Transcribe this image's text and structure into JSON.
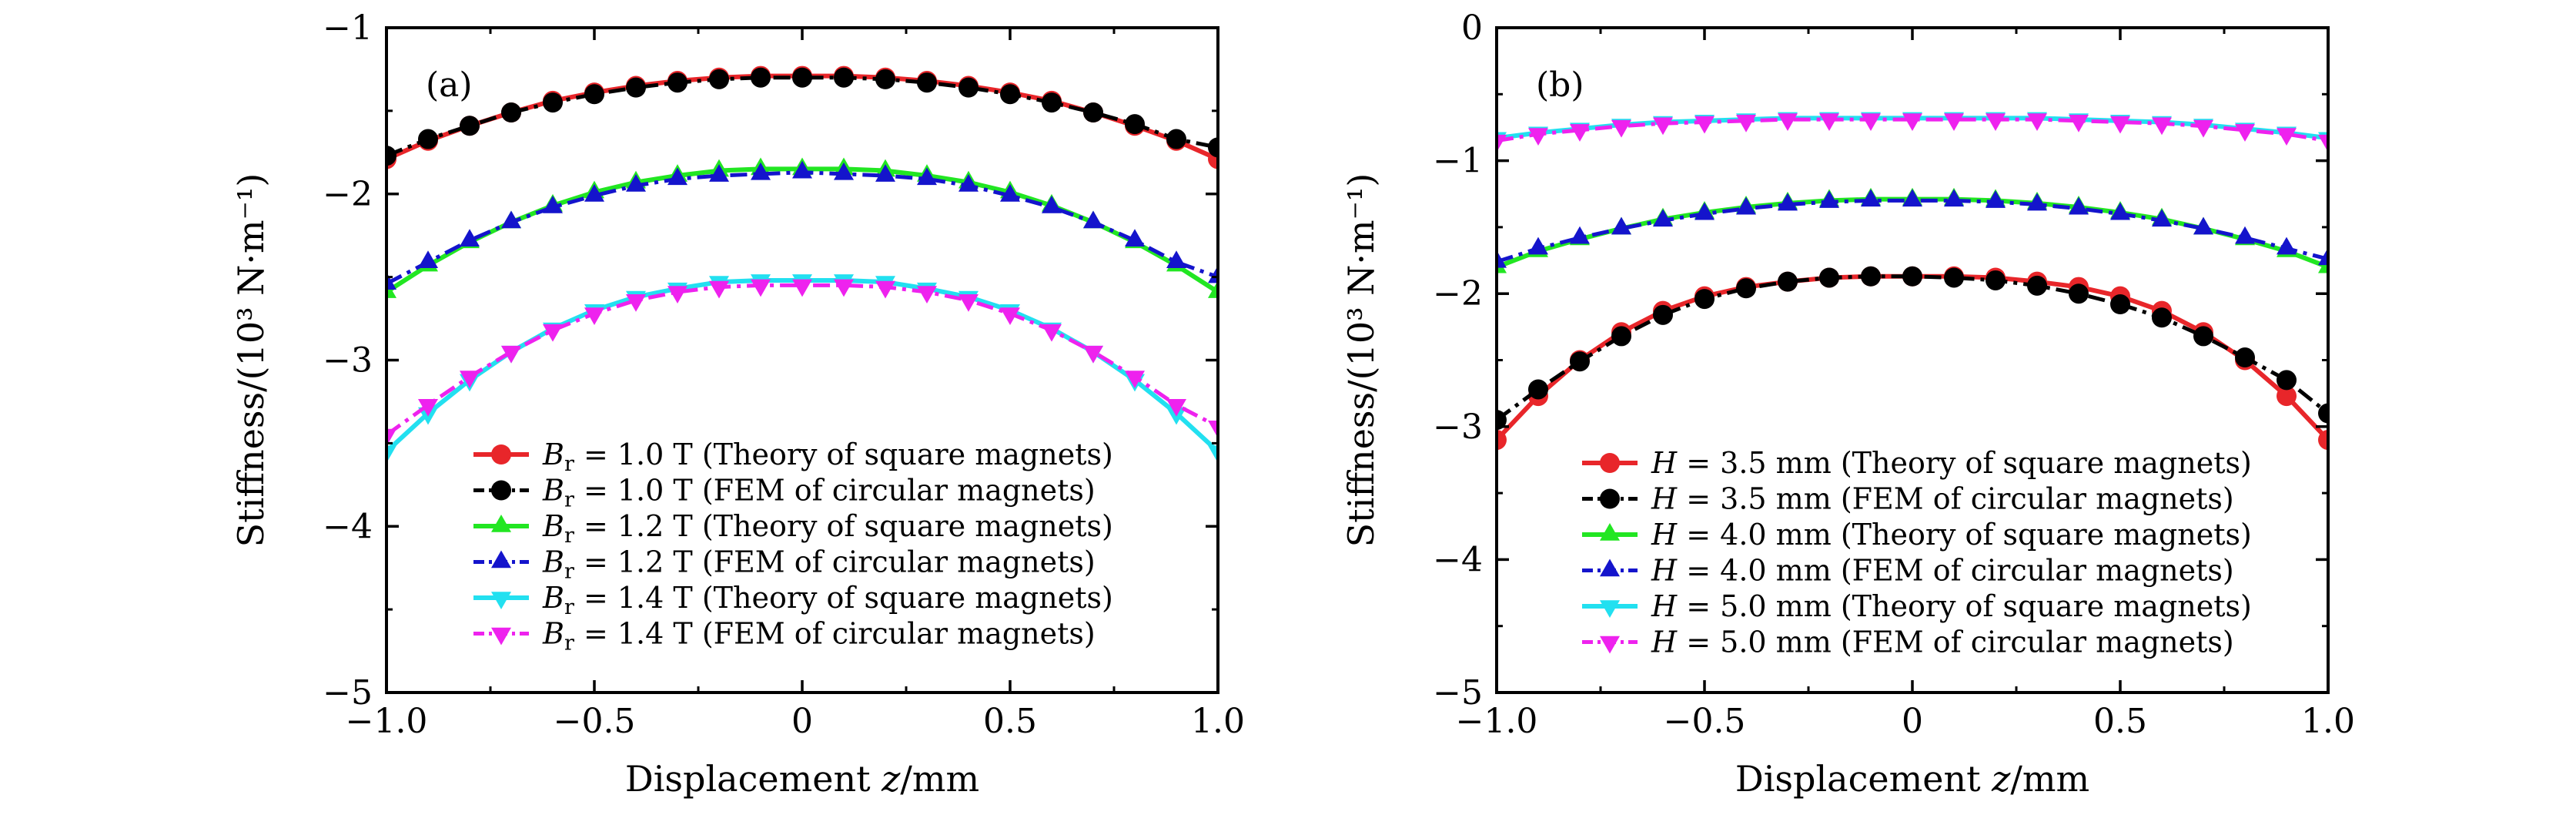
{
  "chart_data": [
    {
      "type": "line",
      "panel_label": "(a)",
      "xlabel": "Displacement z/mm",
      "ylabel": "Stiffness/(10³ N·m⁻¹)",
      "xlim": [
        -1.0,
        1.0
      ],
      "ylim": [
        -5,
        -1
      ],
      "xticks": [
        -1.0,
        -0.5,
        0,
        0.5,
        1.0
      ],
      "xtick_labels": [
        "−1.0",
        "−0.5",
        "0",
        "0.5",
        "1.0"
      ],
      "yticks": [
        -5,
        -4,
        -3,
        -2,
        -1
      ],
      "ytick_labels": [
        "−5",
        "−4",
        "−3",
        "−2",
        "−1"
      ],
      "legend_position": "lower-center",
      "x": [
        -1.0,
        -0.9,
        -0.8,
        -0.7,
        -0.6,
        -0.5,
        -0.4,
        -0.3,
        -0.2,
        -0.1,
        0.0,
        0.1,
        0.2,
        0.3,
        0.4,
        0.5,
        0.6,
        0.7,
        0.8,
        0.9,
        1.0
      ],
      "series": [
        {
          "name": "Br = 1.0 T (Theory of square magnets)",
          "color": "#e8262a",
          "line_style": "solid",
          "marker": "circle",
          "values": [
            -1.79,
            -1.68,
            -1.59,
            -1.51,
            -1.44,
            -1.39,
            -1.35,
            -1.32,
            -1.3,
            -1.29,
            -1.29,
            -1.29,
            -1.3,
            -1.32,
            -1.35,
            -1.39,
            -1.44,
            -1.51,
            -1.59,
            -1.68,
            -1.79
          ]
        },
        {
          "name": "Br = 1.0 T (FEM of circular magnets)",
          "color": "#000000",
          "line_style": "dash-dot",
          "marker": "circle",
          "values": [
            -1.77,
            -1.67,
            -1.59,
            -1.51,
            -1.45,
            -1.4,
            -1.36,
            -1.33,
            -1.31,
            -1.3,
            -1.3,
            -1.3,
            -1.31,
            -1.33,
            -1.36,
            -1.4,
            -1.45,
            -1.51,
            -1.58,
            -1.67,
            -1.72
          ]
        },
        {
          "name": "Br = 1.2 T (Theory of square magnets)",
          "color": "#22e622",
          "line_style": "solid",
          "marker": "triangle-up",
          "values": [
            -2.59,
            -2.43,
            -2.29,
            -2.17,
            -2.07,
            -1.99,
            -1.93,
            -1.89,
            -1.86,
            -1.85,
            -1.85,
            -1.85,
            -1.86,
            -1.89,
            -1.93,
            -1.99,
            -2.07,
            -2.17,
            -2.29,
            -2.43,
            -2.59
          ]
        },
        {
          "name": "Br = 1.2 T (FEM of circular magnets)",
          "color": "#1414cc",
          "line_style": "dash-dot",
          "marker": "triangle-up",
          "values": [
            -2.54,
            -2.41,
            -2.28,
            -2.17,
            -2.08,
            -2.01,
            -1.95,
            -1.91,
            -1.89,
            -1.88,
            -1.87,
            -1.88,
            -1.89,
            -1.91,
            -1.95,
            -2.01,
            -2.08,
            -2.17,
            -2.28,
            -2.41,
            -2.5
          ]
        },
        {
          "name": "Br = 1.4 T (Theory of square magnets)",
          "color": "#22e0f0",
          "line_style": "solid",
          "marker": "triangle-down",
          "values": [
            -3.55,
            -3.32,
            -3.12,
            -2.95,
            -2.81,
            -2.7,
            -2.62,
            -2.57,
            -2.53,
            -2.52,
            -2.52,
            -2.52,
            -2.53,
            -2.57,
            -2.62,
            -2.7,
            -2.81,
            -2.95,
            -3.12,
            -3.32,
            -3.55
          ]
        },
        {
          "name": "Br = 1.4 T (FEM of circular magnets)",
          "color": "#ee22ee",
          "line_style": "dash-dot",
          "marker": "triangle-down",
          "values": [
            -3.45,
            -3.27,
            -3.1,
            -2.95,
            -2.82,
            -2.72,
            -2.64,
            -2.59,
            -2.56,
            -2.55,
            -2.55,
            -2.55,
            -2.56,
            -2.59,
            -2.64,
            -2.72,
            -2.82,
            -2.95,
            -3.1,
            -3.27,
            -3.4
          ]
        }
      ],
      "legend_entries": [
        {
          "var": "B",
          "sub": "r",
          "value": "= 1.0 T",
          "desc": "(Theory of square magnets)"
        },
        {
          "var": "B",
          "sub": "r",
          "value": "= 1.0 T",
          "desc": "(FEM of circular magnets)"
        },
        {
          "var": "B",
          "sub": "r",
          "value": "= 1.2 T",
          "desc": "(Theory of square magnets)"
        },
        {
          "var": "B",
          "sub": "r",
          "value": "= 1.2 T",
          "desc": "(FEM of circular magnets)"
        },
        {
          "var": "B",
          "sub": "r",
          "value": "= 1.4 T",
          "desc": "(Theory of square magnets)"
        },
        {
          "var": "B",
          "sub": "r",
          "value": "= 1.4 T",
          "desc": "(FEM of circular magnets)"
        }
      ]
    },
    {
      "type": "line",
      "panel_label": "(b)",
      "xlabel": "Displacement z/mm",
      "ylabel": "Stiffness/(10³ N·m⁻¹)",
      "xlim": [
        -1.0,
        1.0
      ],
      "ylim": [
        -5,
        0
      ],
      "xticks": [
        -1.0,
        -0.5,
        0,
        0.5,
        1.0
      ],
      "xtick_labels": [
        "−1.0",
        "−0.5",
        "0",
        "0.5",
        "1.0"
      ],
      "yticks": [
        -5,
        -4,
        -3,
        -2,
        -1,
        0
      ],
      "ytick_labels": [
        "−5",
        "−4",
        "−3",
        "−2",
        "−1",
        "0"
      ],
      "legend_position": "lower-center",
      "x": [
        -1.0,
        -0.9,
        -0.8,
        -0.7,
        -0.6,
        -0.5,
        -0.4,
        -0.3,
        -0.2,
        -0.1,
        0.0,
        0.1,
        0.2,
        0.3,
        0.4,
        0.5,
        0.6,
        0.7,
        0.8,
        0.9,
        1.0
      ],
      "series": [
        {
          "name": "H = 3.5 mm (Theory of square magnets)",
          "color": "#e8262a",
          "line_style": "solid",
          "marker": "circle",
          "values": [
            -3.1,
            -2.77,
            -2.5,
            -2.29,
            -2.13,
            -2.02,
            -1.95,
            -1.91,
            -1.88,
            -1.87,
            -1.87,
            -1.87,
            -1.88,
            -1.91,
            -1.95,
            -2.02,
            -2.13,
            -2.29,
            -2.5,
            -2.77,
            -3.1
          ]
        },
        {
          "name": "H = 3.5 mm (FEM of circular magnets)",
          "color": "#000000",
          "line_style": "dash-dot",
          "marker": "circle",
          "values": [
            -2.95,
            -2.72,
            -2.51,
            -2.32,
            -2.16,
            -2.04,
            -1.96,
            -1.91,
            -1.88,
            -1.87,
            -1.87,
            -1.88,
            -1.9,
            -1.94,
            -2.0,
            -2.08,
            -2.18,
            -2.32,
            -2.48,
            -2.65,
            -2.9
          ]
        },
        {
          "name": "H = 4.0 mm (Theory of square magnets)",
          "color": "#22e622",
          "line_style": "solid",
          "marker": "triangle-up",
          "values": [
            -1.8,
            -1.68,
            -1.59,
            -1.51,
            -1.44,
            -1.39,
            -1.35,
            -1.32,
            -1.3,
            -1.29,
            -1.29,
            -1.29,
            -1.3,
            -1.32,
            -1.35,
            -1.39,
            -1.44,
            -1.51,
            -1.59,
            -1.68,
            -1.8
          ]
        },
        {
          "name": "H = 4.0 mm (FEM of circular magnets)",
          "color": "#1414cc",
          "line_style": "dash-dot",
          "marker": "triangle-up",
          "values": [
            -1.76,
            -1.66,
            -1.58,
            -1.51,
            -1.45,
            -1.4,
            -1.36,
            -1.33,
            -1.31,
            -1.3,
            -1.3,
            -1.3,
            -1.31,
            -1.33,
            -1.36,
            -1.4,
            -1.45,
            -1.51,
            -1.58,
            -1.66,
            -1.74
          ]
        },
        {
          "name": "H = 5.0 mm (Theory of square magnets)",
          "color": "#22e0f0",
          "line_style": "solid",
          "marker": "triangle-down",
          "values": [
            -0.83,
            -0.79,
            -0.76,
            -0.73,
            -0.71,
            -0.7,
            -0.69,
            -0.68,
            -0.68,
            -0.68,
            -0.68,
            -0.68,
            -0.68,
            -0.68,
            -0.69,
            -0.7,
            -0.71,
            -0.73,
            -0.76,
            -0.79,
            -0.83
          ]
        },
        {
          "name": "H = 5.0 mm (FEM of circular magnets)",
          "color": "#ee22ee",
          "line_style": "dash-dot",
          "marker": "triangle-down",
          "values": [
            -0.85,
            -0.8,
            -0.77,
            -0.74,
            -0.72,
            -0.71,
            -0.7,
            -0.69,
            -0.69,
            -0.69,
            -0.69,
            -0.69,
            -0.69,
            -0.69,
            -0.7,
            -0.71,
            -0.72,
            -0.74,
            -0.77,
            -0.8,
            -0.85
          ]
        }
      ],
      "legend_entries": [
        {
          "var": "H",
          "sub": "",
          "value": "= 3.5 mm",
          "desc": "(Theory of square magnets)"
        },
        {
          "var": "H",
          "sub": "",
          "value": "= 3.5 mm",
          "desc": "(FEM of circular magnets)"
        },
        {
          "var": "H",
          "sub": "",
          "value": "= 4.0 mm",
          "desc": "(Theory of square magnets)"
        },
        {
          "var": "H",
          "sub": "",
          "value": "= 4.0 mm",
          "desc": "(FEM of circular magnets)"
        },
        {
          "var": "H",
          "sub": "",
          "value": "= 5.0 mm",
          "desc": "(Theory of square magnets)"
        },
        {
          "var": "H",
          "sub": "",
          "value": "= 5.0 mm",
          "desc": "(FEM of circular magnets)"
        }
      ]
    }
  ]
}
